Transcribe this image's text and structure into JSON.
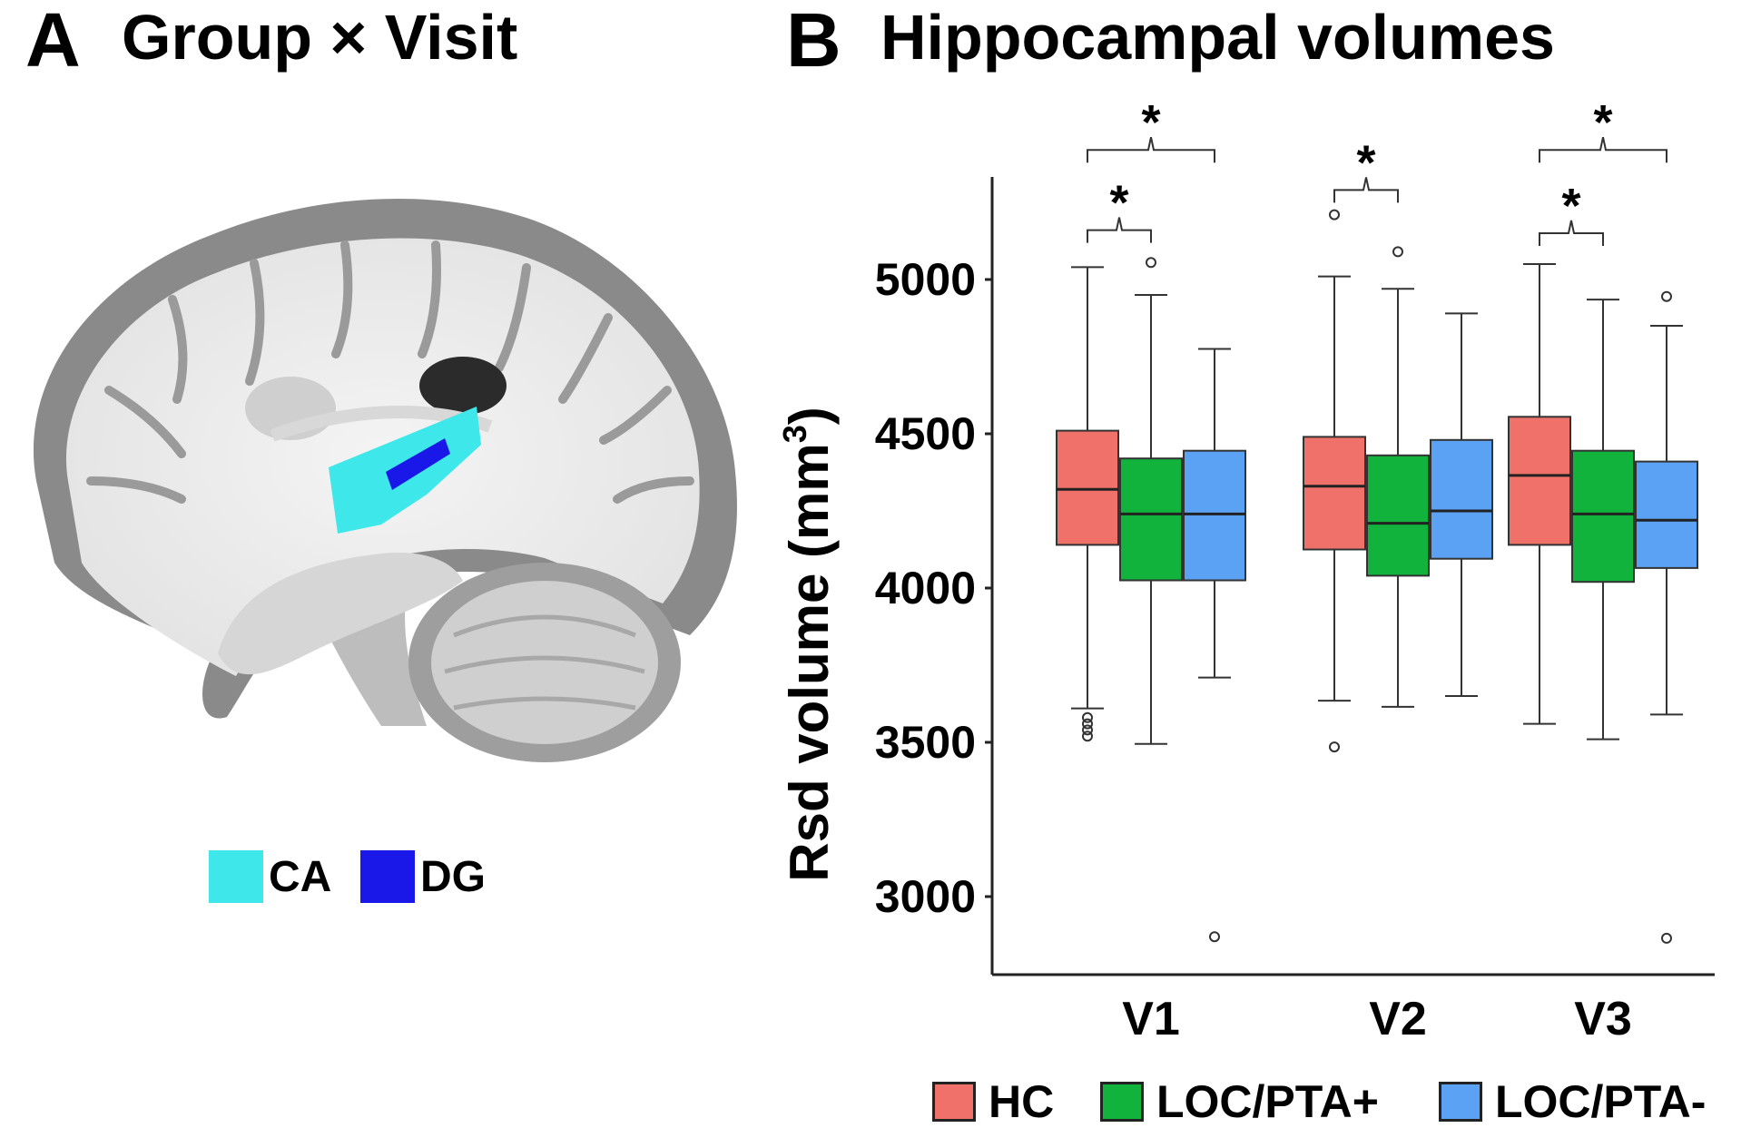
{
  "panel_a": {
    "letter": "A",
    "title": "Group × Visit",
    "atlas_legend": [
      {
        "label": "CA",
        "color": "#3ee8ea"
      },
      {
        "label": "DG",
        "color": "#1a18e8"
      }
    ]
  },
  "panel_b": {
    "letter": "B",
    "title": "Hippocampal volumes"
  },
  "chart_data": {
    "type": "boxplot",
    "title": "Hippocampal volumes",
    "ylabel": "Rsd volume (mm3)",
    "ylabel_main": "Rsd volume (mm",
    "ylabel_sup": "3",
    "ylabel_tail": ")",
    "ylim": [
      2760,
      5330
    ],
    "yticks": [
      "3000",
      "3500",
      "4000",
      "4500",
      "5000"
    ],
    "ytick_values": [
      3000,
      3500,
      4000,
      4500,
      5000
    ],
    "categories": [
      "V1",
      "V2",
      "V3"
    ],
    "grid": false,
    "legend_placement": "bottom",
    "series": [
      {
        "name": "HC",
        "color": "#f0706a",
        "boxes": [
          {
            "whisker_low": 3610,
            "q1": 4140,
            "median": 4320,
            "q3": 4510,
            "whisker_high": 5040,
            "outliers": [
              3520,
              3540,
              3560,
              3580
            ]
          },
          {
            "whisker_low": 3635,
            "q1": 4125,
            "median": 4330,
            "q3": 4490,
            "whisker_high": 5010,
            "outliers": [
              3485,
              5210
            ]
          },
          {
            "whisker_low": 3560,
            "q1": 4140,
            "median": 4365,
            "q3": 4555,
            "whisker_high": 5050,
            "outliers": []
          }
        ]
      },
      {
        "name": "LOC/PTA+",
        "color": "#11b33d",
        "boxes": [
          {
            "whisker_low": 3495,
            "q1": 4025,
            "median": 4240,
            "q3": 4420,
            "whisker_high": 4950,
            "outliers": [
              5055
            ]
          },
          {
            "whisker_low": 3615,
            "q1": 4040,
            "median": 4210,
            "q3": 4430,
            "whisker_high": 4970,
            "outliers": [
              5090
            ]
          },
          {
            "whisker_low": 3510,
            "q1": 4020,
            "median": 4240,
            "q3": 4445,
            "whisker_high": 4935,
            "outliers": []
          }
        ]
      },
      {
        "name": "LOC/PTA-",
        "color": "#5ba2f5",
        "boxes": [
          {
            "whisker_low": 3710,
            "q1": 4025,
            "median": 4240,
            "q3": 4445,
            "whisker_high": 4775,
            "outliers": [
              2870
            ]
          },
          {
            "whisker_low": 3650,
            "q1": 4095,
            "median": 4250,
            "q3": 4480,
            "whisker_high": 4890,
            "outliers": []
          },
          {
            "whisker_low": 3590,
            "q1": 4065,
            "median": 4220,
            "q3": 4410,
            "whisker_high": 4850,
            "outliers": [
              4945,
              2865
            ]
          }
        ]
      }
    ],
    "significance": [
      {
        "category": 0,
        "from": 0,
        "to": 1,
        "level": 5160,
        "label": "*"
      },
      {
        "category": 0,
        "from": 0,
        "to": 2,
        "level": 5420,
        "label": "*"
      },
      {
        "category": 1,
        "from": 0,
        "to": 1,
        "level": 5290,
        "label": "*"
      },
      {
        "category": 2,
        "from": 0,
        "to": 1,
        "level": 5150,
        "label": "*"
      },
      {
        "category": 2,
        "from": 0,
        "to": 2,
        "level": 5420,
        "label": "*"
      }
    ]
  }
}
